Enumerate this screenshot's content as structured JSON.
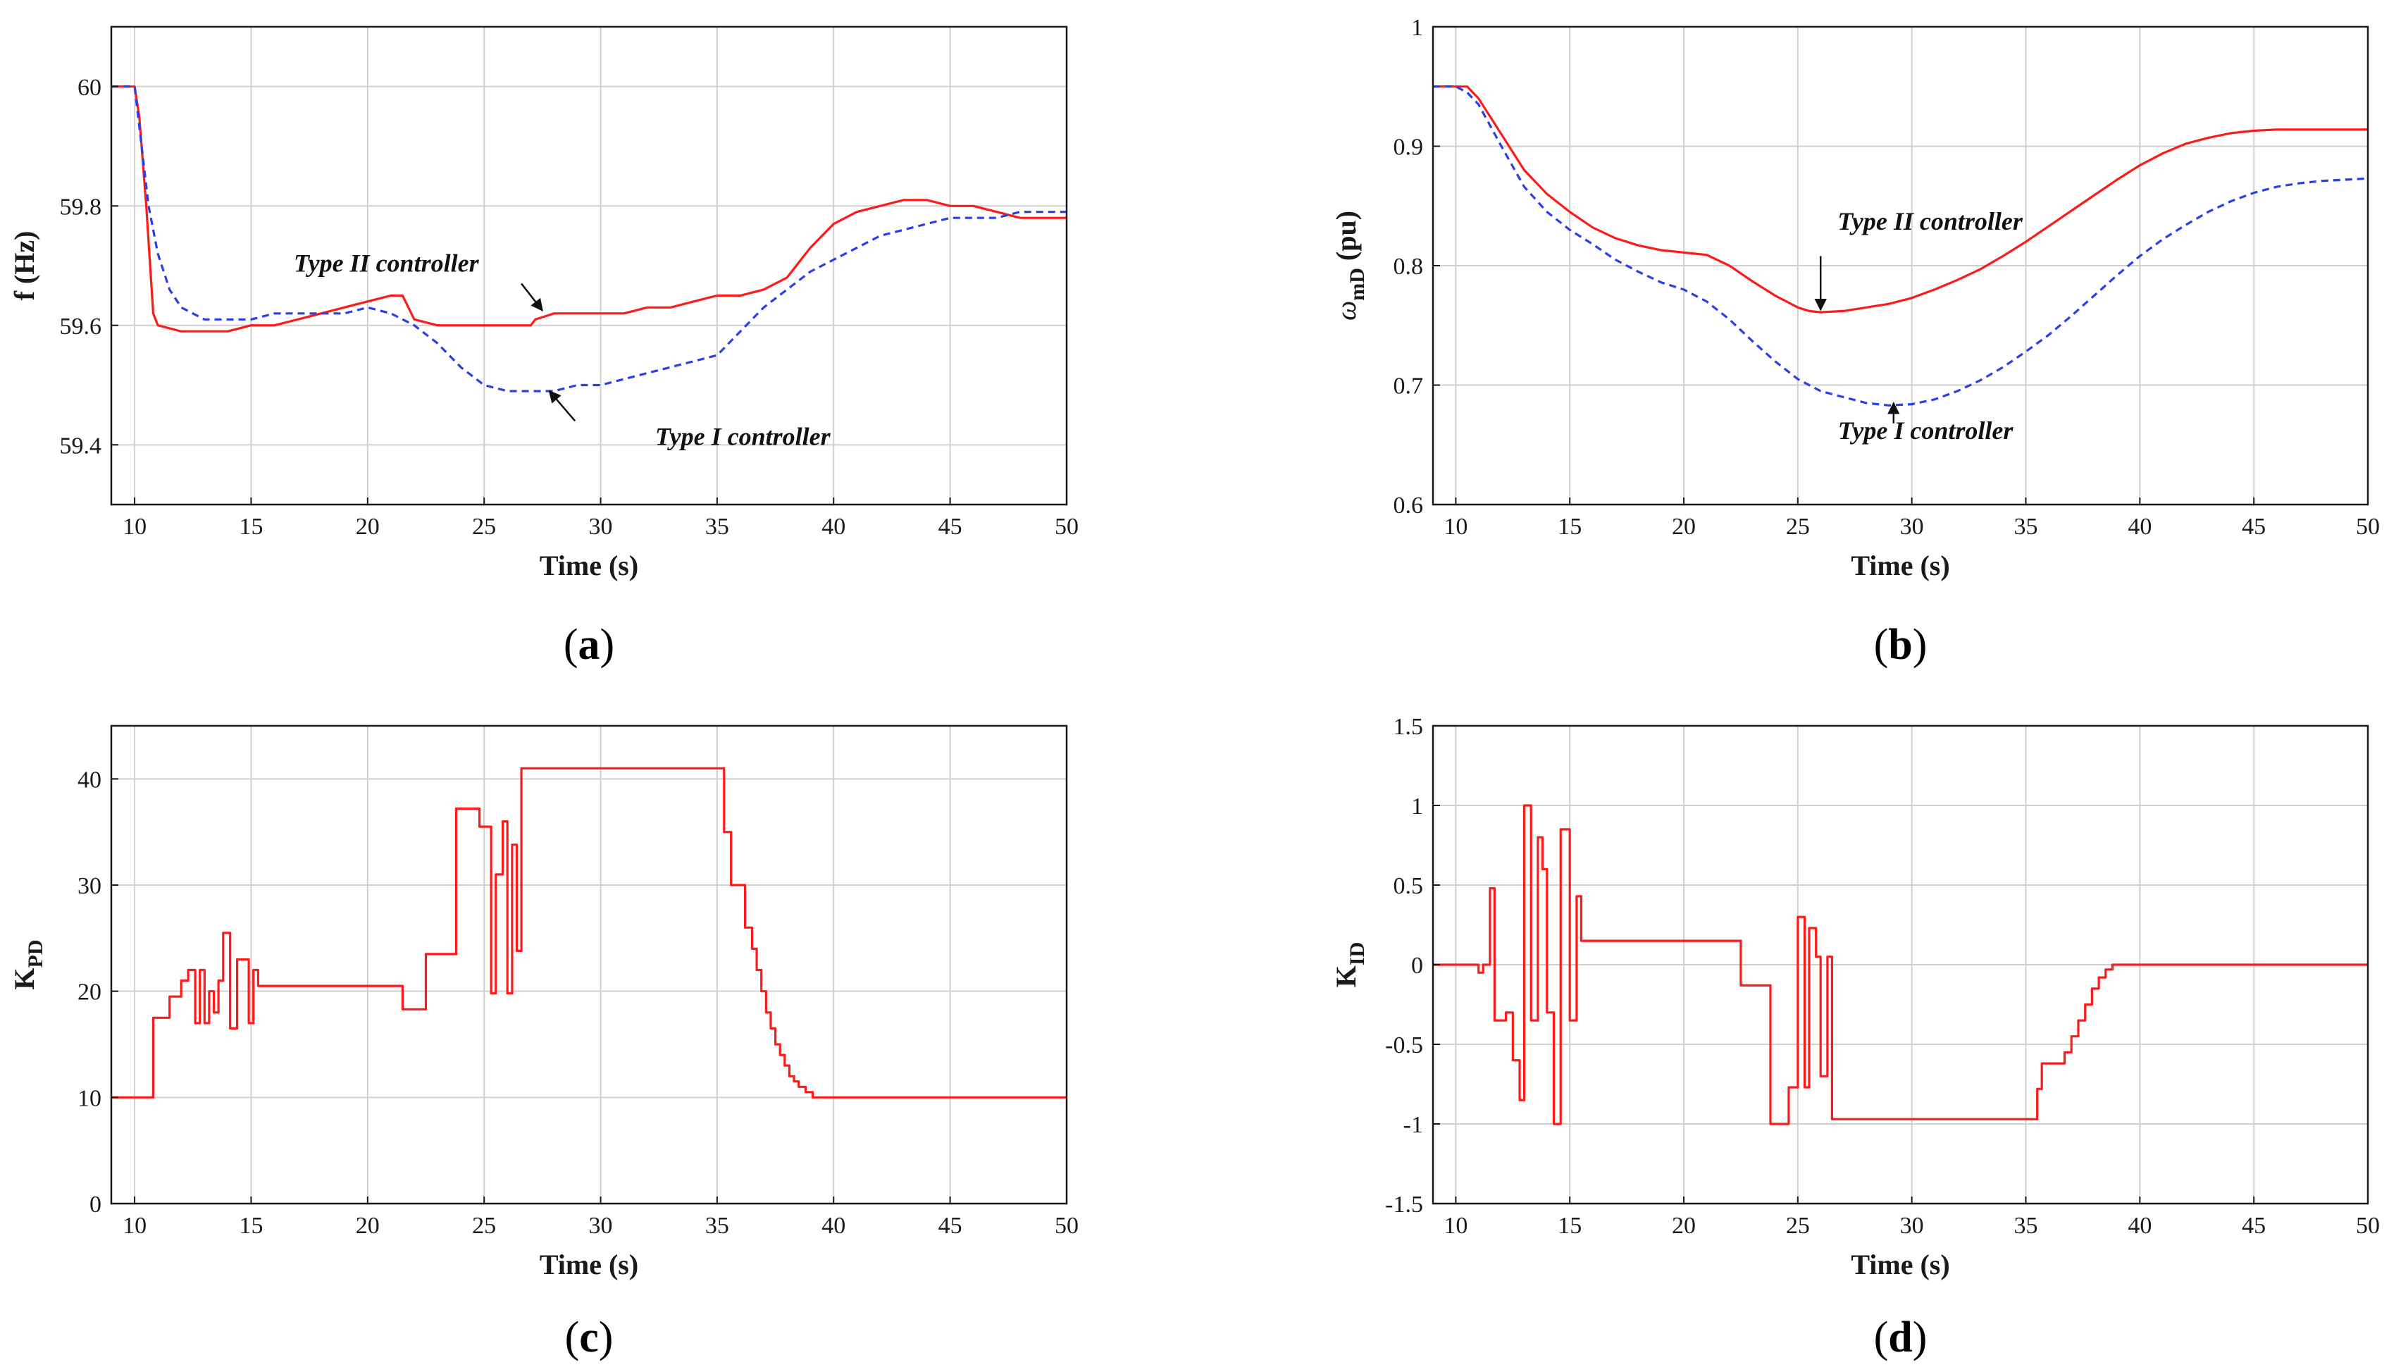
{
  "chart_data": [
    {
      "id": "a",
      "type": "line",
      "caption": "a",
      "xlabel": "Time (s)",
      "ylabel": "f (Hz)",
      "xlim": [
        9,
        50
      ],
      "ylim": [
        59.3,
        60.1
      ],
      "xticks": [
        10,
        15,
        20,
        25,
        30,
        35,
        40,
        45,
        50
      ],
      "yticks": [
        59.4,
        59.6,
        59.8,
        60
      ],
      "ytick_labels": [
        "59.4",
        "59.6",
        "59.8",
        "60"
      ],
      "grid": true,
      "series": [
        {
          "name": "Type II controller",
          "color": "#ff1a1a",
          "dash": "solid",
          "x": [
            9,
            10,
            10.2,
            10.5,
            10.8,
            11,
            12,
            13,
            14,
            15,
            16,
            17,
            18,
            19,
            20,
            21,
            21.5,
            22,
            23,
            24,
            25,
            26,
            27,
            27.2,
            28,
            29,
            30,
            31,
            32,
            33,
            34,
            35,
            36,
            37,
            38,
            39,
            40,
            41,
            42,
            43,
            44,
            45,
            46,
            47,
            48,
            49,
            50
          ],
          "y": [
            60,
            60,
            59.95,
            59.8,
            59.62,
            59.6,
            59.59,
            59.59,
            59.59,
            59.6,
            59.6,
            59.61,
            59.62,
            59.63,
            59.64,
            59.65,
            59.65,
            59.61,
            59.6,
            59.6,
            59.6,
            59.6,
            59.6,
            59.61,
            59.62,
            59.62,
            59.62,
            59.62,
            59.63,
            59.63,
            59.64,
            59.65,
            59.65,
            59.66,
            59.68,
            59.73,
            59.77,
            59.79,
            59.8,
            59.81,
            59.81,
            59.8,
            59.8,
            59.79,
            59.78,
            59.78,
            59.78
          ]
        },
        {
          "name": "Type I controller",
          "color": "#2a3fe8",
          "dash": "dashed",
          "x": [
            9,
            10,
            10.3,
            10.6,
            11,
            11.5,
            12,
            13,
            14,
            15,
            16,
            17,
            18,
            19,
            20,
            21,
            22,
            23,
            24,
            25,
            26,
            27,
            28,
            29,
            30,
            31,
            32,
            33,
            34,
            35,
            36,
            37,
            38,
            39,
            40,
            41,
            42,
            43,
            44,
            45,
            46,
            47,
            48,
            49,
            50
          ],
          "y": [
            60,
            60,
            59.9,
            59.8,
            59.72,
            59.66,
            59.63,
            59.61,
            59.61,
            59.61,
            59.62,
            59.62,
            59.62,
            59.62,
            59.63,
            59.62,
            59.6,
            59.57,
            59.53,
            59.5,
            59.49,
            59.49,
            59.49,
            59.5,
            59.5,
            59.51,
            59.52,
            59.53,
            59.54,
            59.55,
            59.59,
            59.63,
            59.66,
            59.69,
            59.71,
            59.73,
            59.75,
            59.76,
            59.77,
            59.78,
            59.78,
            59.78,
            59.79,
            59.79,
            59.79
          ]
        }
      ],
      "annotations": [
        {
          "text": "Type II controller",
          "tx": 20.8,
          "ty": 59.69,
          "ax": 27.5,
          "ay": 59.625,
          "lx": 26.6,
          "ly": 59.67
        },
        {
          "text": "Type I controller",
          "tx": 36.1,
          "ty": 59.4,
          "ax": 27.8,
          "ay": 59.49,
          "lx": 28.9,
          "ly": 59.44
        }
      ]
    },
    {
      "id": "b",
      "type": "line",
      "caption": "b",
      "xlabel": "Time (s)",
      "ylabel": "ωmD (pu)",
      "ylabel_main": "ω",
      "ylabel_sub": "mD",
      "ylabel_unit": "(pu)",
      "xlim": [
        9,
        50
      ],
      "ylim": [
        0.6,
        1.0
      ],
      "xticks": [
        10,
        15,
        20,
        25,
        30,
        35,
        40,
        45,
        50
      ],
      "yticks": [
        0.6,
        0.7,
        0.8,
        0.9,
        1
      ],
      "ytick_labels": [
        "0.6",
        "0.7",
        "0.8",
        "0.9",
        "1"
      ],
      "grid": true,
      "series": [
        {
          "name": "Type II controller",
          "color": "#ff1a1a",
          "dash": "solid",
          "x": [
            9,
            10,
            10.5,
            11,
            12,
            13,
            14,
            15,
            16,
            17,
            18,
            19,
            20,
            21,
            22,
            23,
            24,
            25,
            25.5,
            26,
            27,
            28,
            29,
            30,
            31,
            32,
            33,
            34,
            35,
            36,
            37,
            38,
            39,
            40,
            41,
            42,
            43,
            44,
            45,
            46,
            47,
            48,
            49,
            50
          ],
          "y": [
            0.95,
            0.95,
            0.95,
            0.94,
            0.91,
            0.88,
            0.86,
            0.845,
            0.832,
            0.823,
            0.817,
            0.813,
            0.811,
            0.809,
            0.8,
            0.787,
            0.775,
            0.765,
            0.762,
            0.761,
            0.762,
            0.765,
            0.768,
            0.773,
            0.78,
            0.788,
            0.797,
            0.808,
            0.82,
            0.833,
            0.846,
            0.859,
            0.872,
            0.884,
            0.894,
            0.902,
            0.907,
            0.911,
            0.913,
            0.914,
            0.914,
            0.914,
            0.914,
            0.914
          ]
        },
        {
          "name": "Type I controller",
          "color": "#2a3fe8",
          "dash": "dashed",
          "x": [
            9,
            10,
            10.5,
            11,
            12,
            13,
            14,
            15,
            16,
            17,
            18,
            19,
            20,
            21,
            22,
            23,
            24,
            25,
            26,
            27,
            28,
            29,
            30,
            31,
            32,
            33,
            34,
            35,
            36,
            37,
            38,
            39,
            40,
            41,
            42,
            43,
            44,
            45,
            46,
            47,
            48,
            49,
            50
          ],
          "y": [
            0.95,
            0.95,
            0.945,
            0.935,
            0.9,
            0.866,
            0.845,
            0.83,
            0.818,
            0.805,
            0.795,
            0.786,
            0.78,
            0.77,
            0.755,
            0.737,
            0.72,
            0.705,
            0.695,
            0.69,
            0.685,
            0.683,
            0.684,
            0.688,
            0.695,
            0.704,
            0.715,
            0.728,
            0.742,
            0.758,
            0.775,
            0.792,
            0.808,
            0.822,
            0.834,
            0.845,
            0.854,
            0.861,
            0.866,
            0.869,
            0.871,
            0.872,
            0.873
          ]
        }
      ],
      "annotations": [
        {
          "text": "Type II controller",
          "tx": 30.8,
          "ty": 0.83,
          "ax": 26,
          "ay": 0.763,
          "lx": 26,
          "ly": 0.808
        },
        {
          "text": "Type I controller",
          "tx": 30.6,
          "ty": 0.655,
          "ax": 29.2,
          "ay": 0.685,
          "lx": 29.2,
          "ly": 0.668
        }
      ]
    },
    {
      "id": "c",
      "type": "line",
      "caption": "c",
      "xlabel": "Time (s)",
      "ylabel": "KPD",
      "ylabel_main": "K",
      "ylabel_sub": "PD",
      "ylabel_unit": "",
      "xlim": [
        9,
        50
      ],
      "ylim": [
        0,
        45
      ],
      "xticks": [
        10,
        15,
        20,
        25,
        30,
        35,
        40,
        45,
        50
      ],
      "yticks": [
        0,
        10,
        20,
        30,
        40
      ],
      "ytick_labels": [
        "0",
        "10",
        "20",
        "30",
        "40"
      ],
      "grid": true,
      "series": [
        {
          "name": "KPD",
          "color": "#ff1a1a",
          "dash": "solid",
          "step": true,
          "x": [
            9,
            10.8,
            11.5,
            12,
            12.3,
            12.6,
            12.8,
            13,
            13.2,
            13.4,
            13.6,
            13.8,
            14.1,
            14.4,
            14.9,
            15.1,
            15.3,
            15.5,
            15.7,
            16,
            21.5,
            22.5,
            23.8,
            24.8,
            25.3,
            25.5,
            25.8,
            26,
            26.2,
            26.4,
            26.6,
            26.8,
            35.3,
            35.6,
            36.2,
            36.5,
            36.7,
            36.9,
            37.1,
            37.3,
            37.5,
            37.7,
            37.9,
            38.1,
            38.3,
            38.5,
            38.8,
            39.1,
            39.5,
            50
          ],
          "y": [
            10,
            17.5,
            19.5,
            21,
            22,
            17,
            22,
            17,
            20,
            18,
            21,
            25.5,
            16.5,
            23,
            17,
            22,
            20.5,
            20.5,
            20.5,
            20.5,
            18.3,
            23.5,
            37.2,
            35.5,
            19.8,
            31,
            36,
            19.8,
            33.8,
            23.8,
            41,
            41,
            35,
            30,
            26,
            24,
            22,
            20,
            18,
            16.5,
            15,
            14,
            13,
            12,
            11.5,
            11,
            10.5,
            10,
            10,
            10
          ]
        }
      ],
      "annotations": []
    },
    {
      "id": "d",
      "type": "line",
      "caption": "d",
      "xlabel": "Time (s)",
      "ylabel": "KID",
      "ylabel_main": "K",
      "ylabel_sub": "ID",
      "ylabel_unit": "",
      "xlim": [
        9,
        50
      ],
      "ylim": [
        -1.5,
        1.5
      ],
      "xticks": [
        10,
        15,
        20,
        25,
        30,
        35,
        40,
        45,
        50
      ],
      "yticks": [
        -1.5,
        -1,
        -0.5,
        0,
        0.5,
        1,
        1.5
      ],
      "ytick_labels": [
        "-1.5",
        "-1",
        "-0.5",
        "0",
        "0.5",
        "1",
        "1.5"
      ],
      "grid": true,
      "series": [
        {
          "name": "KID",
          "color": "#ff1a1a",
          "dash": "solid",
          "step": true,
          "x": [
            9,
            11,
            11.2,
            11.5,
            11.7,
            12.2,
            12.5,
            12.8,
            13,
            13.3,
            13.6,
            13.8,
            14,
            14.3,
            14.6,
            15,
            15.3,
            15.5,
            15.7,
            22.5,
            23.8,
            24.6,
            25,
            25.3,
            25.5,
            25.8,
            26,
            26.3,
            26.5,
            26.7,
            35.5,
            35.7,
            36,
            36.7,
            37,
            37.3,
            37.6,
            37.9,
            38.2,
            38.5,
            38.8,
            39,
            50
          ],
          "y": [
            0,
            -0.05,
            0,
            0.48,
            -0.35,
            -0.3,
            -0.6,
            -0.85,
            1.0,
            -0.35,
            0.8,
            0.6,
            -0.3,
            -1.0,
            0.85,
            -0.35,
            0.43,
            0.15,
            0.15,
            -0.13,
            -1.0,
            -0.77,
            0.3,
            -0.77,
            0.23,
            0.05,
            -0.7,
            0.05,
            -0.97,
            -0.97,
            -0.78,
            -0.62,
            -0.62,
            -0.55,
            -0.45,
            -0.35,
            -0.25,
            -0.15,
            -0.08,
            -0.03,
            0,
            0,
            0
          ]
        }
      ],
      "annotations": []
    }
  ]
}
